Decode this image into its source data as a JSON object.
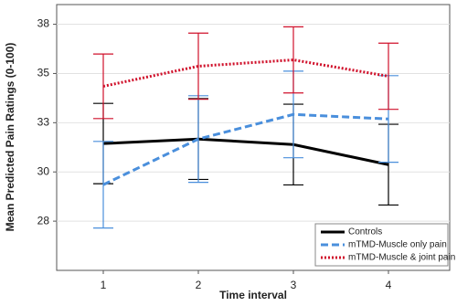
{
  "chart_data": {
    "type": "line",
    "xlabel": "Time interval",
    "ylabel": "Mean Predicted Pain Ratings (0-100)",
    "categories": [
      "1",
      "2",
      "3",
      "4"
    ],
    "ylim": [
      25.0,
      38.5
    ],
    "yticks": [
      {
        "value": 27.5,
        "label": "28"
      },
      {
        "value": 30,
        "label": "30"
      },
      {
        "value": 32.5,
        "label": "33"
      },
      {
        "value": 35,
        "label": "35"
      },
      {
        "value": 37.5,
        "label": "38"
      }
    ],
    "legend": "lower right",
    "series": [
      {
        "name": "Controls",
        "color": "#000000",
        "dash": "solid",
        "values": [
          31.44,
          31.67,
          31.39,
          30.37
        ],
        "errors": [
          2.04,
          2.05,
          2.05,
          2.05
        ]
      },
      {
        "name": "mTMD-Muscle only pain",
        "color": "#4a8fdc",
        "dash": "dashed",
        "values": [
          29.35,
          31.67,
          32.92,
          32.69
        ],
        "errors": [
          2.2,
          2.2,
          2.2,
          2.2
        ]
      },
      {
        "name": "mTMD-Muscle & joint pain",
        "color": "#d0112b",
        "dash": "dotted",
        "values": [
          34.35,
          35.37,
          35.69,
          34.86
        ],
        "errors": [
          1.64,
          1.68,
          1.68,
          1.68
        ]
      }
    ]
  }
}
